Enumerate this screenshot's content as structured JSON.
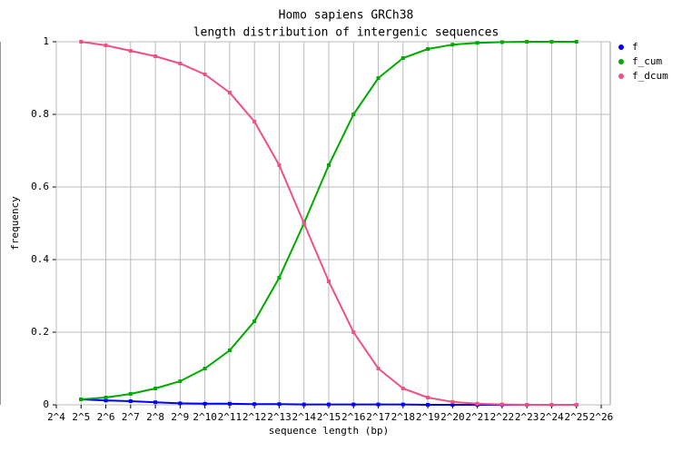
{
  "chart_data": {
    "type": "line",
    "title": "Homo sapiens GRCh38",
    "subtitle": "length distribution of intergenic sequences",
    "x_label": "sequence length (bp)",
    "y_label": "frequency",
    "log_x": 2,
    "grid": true,
    "legend": "right",
    "x": [
      32,
      64,
      128,
      256,
      512,
      1024,
      2048,
      4096,
      8192,
      16384,
      32768,
      65536,
      131072,
      262144,
      524288,
      1048576,
      2097152,
      4194304,
      8388608,
      16777216,
      33554432
    ],
    "series": [
      {
        "name": "f",
        "color": "#0000ff",
        "values": [
          0.015,
          0.012,
          0.01,
          0.007,
          0.004,
          0.003,
          0.003,
          0.002,
          0.002,
          0.001,
          0.001,
          0.001,
          0.001,
          0.001,
          0,
          0,
          0,
          0,
          0,
          0,
          0
        ]
      },
      {
        "name": "f_cum",
        "color": "#00aa00",
        "values": [
          0.015,
          0.02,
          0.03,
          0.045,
          0.065,
          0.1,
          0.15,
          0.23,
          0.35,
          0.5,
          0.66,
          0.8,
          0.9,
          0.955,
          0.98,
          0.992,
          0.997,
          0.999,
          1,
          1,
          1
        ]
      },
      {
        "name": "f_dcum",
        "color": "#f0508a",
        "values": [
          1,
          0.99,
          0.975,
          0.96,
          0.94,
          0.91,
          0.86,
          0.78,
          0.66,
          0.5,
          0.34,
          0.2,
          0.1,
          0.045,
          0.02,
          0.008,
          0.003,
          0.001,
          0,
          0,
          0
        ]
      }
    ],
    "xlim": [
      16,
      67108864
    ],
    "xticks": [
      {
        "value": 16,
        "label": "2^4"
      },
      {
        "value": 32,
        "label": "2^5"
      },
      {
        "value": 64,
        "label": "2^6"
      },
      {
        "value": 128,
        "label": "2^7"
      },
      {
        "value": 256,
        "label": "2^8"
      },
      {
        "value": 512,
        "label": "2^9"
      },
      {
        "value": 1024,
        "label": "2^10"
      },
      {
        "value": 2048,
        "label": "2^11"
      },
      {
        "value": 4096,
        "label": "2^12"
      },
      {
        "value": 8192,
        "label": "2^13"
      },
      {
        "value": 16384,
        "label": "2^14"
      },
      {
        "value": 32768,
        "label": "2^15"
      },
      {
        "value": 65536,
        "label": "2^16"
      },
      {
        "value": 131072,
        "label": "2^17"
      },
      {
        "value": 262144,
        "label": "2^18"
      },
      {
        "value": 524288,
        "label": "2^19"
      },
      {
        "value": 1048576,
        "label": "2^20"
      },
      {
        "value": 2097152,
        "label": "2^21"
      },
      {
        "value": 4194304,
        "label": "2^22"
      },
      {
        "value": 8388608,
        "label": "2^23"
      },
      {
        "value": 16777216,
        "label": "2^24"
      },
      {
        "value": 33554432,
        "label": "2^25"
      },
      {
        "value": 67108864,
        "label": "2^26"
      }
    ],
    "ylim": [
      0,
      1
    ],
    "yticks": [
      0,
      0.2,
      0.4,
      0.6,
      0.8,
      1
    ]
  }
}
